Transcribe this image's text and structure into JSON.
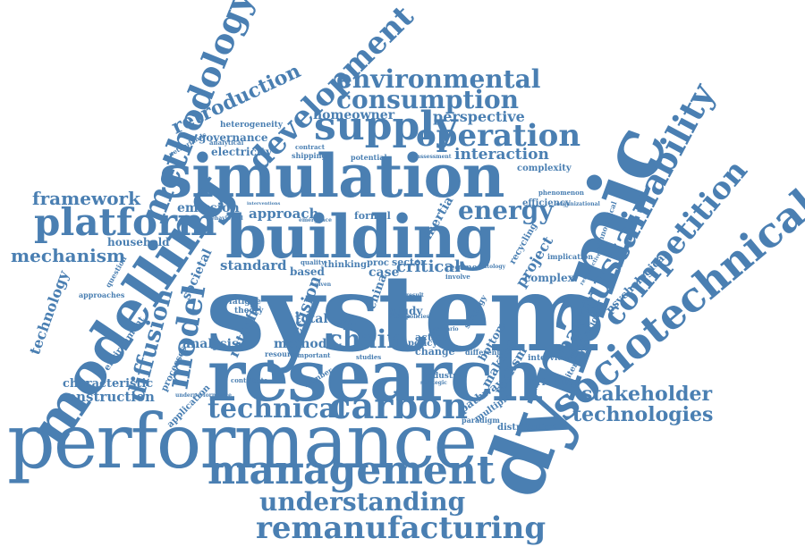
{
  "accent_color": "#4a7fb2",
  "background_color": "#ffffff",
  "words": [
    {
      "id": "system",
      "text": "system"
    },
    {
      "id": "simulation",
      "text": "simulation"
    },
    {
      "id": "performance",
      "text": "performance"
    },
    {
      "id": "research",
      "text": "research"
    },
    {
      "id": "building",
      "text": "building"
    },
    {
      "id": "dynamic",
      "text": "dynamic"
    },
    {
      "id": "modelling",
      "text": "modelling"
    },
    {
      "id": "management",
      "text": "management"
    },
    {
      "id": "sociotechnical",
      "text": "sociotechnical"
    },
    {
      "id": "sustainability",
      "text": "sustainability"
    },
    {
      "id": "methodology",
      "text": "methodology"
    },
    {
      "id": "remanufacturing",
      "text": "remanufacturing"
    },
    {
      "id": "understanding",
      "text": "understanding"
    },
    {
      "id": "technical",
      "text": "technical"
    },
    {
      "id": "carbon",
      "text": "carbon"
    },
    {
      "id": "platform",
      "text": "platform"
    },
    {
      "id": "environmental",
      "text": "environmental"
    },
    {
      "id": "consumption",
      "text": "consumption"
    },
    {
      "id": "supply",
      "text": "supply"
    },
    {
      "id": "operation",
      "text": "operation"
    },
    {
      "id": "competition",
      "text": "competition"
    },
    {
      "id": "development",
      "text": "development"
    },
    {
      "id": "retroduction",
      "text": "retroduction"
    },
    {
      "id": "chain",
      "text": "chain"
    },
    {
      "id": "model",
      "text": "model"
    },
    {
      "id": "energy",
      "text": "energy"
    },
    {
      "id": "stakeholder",
      "text": "stakeholder"
    },
    {
      "id": "technologies",
      "text": "technologies"
    },
    {
      "id": "framework",
      "text": "framework"
    },
    {
      "id": "mechanism",
      "text": "mechanism"
    },
    {
      "id": "diffusion",
      "text": "diffusion"
    },
    {
      "id": "technology",
      "text": "technology"
    },
    {
      "id": "construction",
      "text": "construction"
    },
    {
      "id": "characteristic",
      "text": "characteristic"
    },
    {
      "id": "interaction",
      "text": "interaction"
    },
    {
      "id": "perspective",
      "text": "perspective"
    },
    {
      "id": "homeowner",
      "text": "homeowner"
    },
    {
      "id": "paper",
      "text": "paper"
    },
    {
      "id": "critical",
      "text": "critical"
    },
    {
      "id": "approach",
      "text": "approach"
    },
    {
      "id": "standard",
      "text": "standard"
    },
    {
      "id": "emission",
      "text": "emission"
    },
    {
      "id": "household",
      "text": "household"
    },
    {
      "id": "governance",
      "text": "governance"
    },
    {
      "id": "electricity",
      "text": "electricity"
    },
    {
      "id": "heterogeneity",
      "text": "heterogeneity"
    },
    {
      "id": "project",
      "text": "project"
    },
    {
      "id": "retrofit",
      "text": "retrofit"
    },
    {
      "id": "analysis",
      "text": "analysis"
    },
    {
      "id": "method",
      "text": "method"
    },
    {
      "id": "total",
      "text": "total"
    },
    {
      "id": "decision",
      "text": "decision"
    },
    {
      "id": "complex",
      "text": "complex"
    },
    {
      "id": "psychological",
      "text": "psychological"
    },
    {
      "id": "innovation",
      "text": "innovation"
    },
    {
      "id": "societal",
      "text": "societal"
    },
    {
      "id": "environment",
      "text": "environment"
    },
    {
      "id": "approaches",
      "text": "approaches"
    },
    {
      "id": "processes",
      "text": "processes"
    },
    {
      "id": "application",
      "text": "application"
    },
    {
      "id": "pathway",
      "text": "pathway"
    },
    {
      "id": "multiple",
      "text": "multiple"
    },
    {
      "id": "distribution",
      "text": "distribution"
    },
    {
      "id": "bridging",
      "text": "bridging"
    },
    {
      "id": "making",
      "text": "making"
    },
    {
      "id": "realism",
      "text": "realism"
    },
    {
      "id": "bottom",
      "text": "bottom"
    },
    {
      "id": "interview",
      "text": "interview"
    },
    {
      "id": "literature",
      "text": "literature"
    },
    {
      "id": "efficiency",
      "text": "efficiency"
    },
    {
      "id": "complexity",
      "text": "complexity"
    },
    {
      "id": "phenomenon",
      "text": "phenomenon"
    },
    {
      "id": "technological",
      "text": "technological"
    },
    {
      "id": "implication",
      "text": "implication"
    },
    {
      "id": "recycling",
      "text": "recycling"
    },
    {
      "id": "inertia",
      "text": "inertia"
    },
    {
      "id": "formal",
      "text": "formal"
    },
    {
      "id": "case",
      "text": "case"
    },
    {
      "id": "based",
      "text": "based"
    },
    {
      "id": "sector",
      "text": "sector"
    },
    {
      "id": "regime",
      "text": "regime"
    },
    {
      "id": "china",
      "text": "china"
    },
    {
      "id": "study",
      "text": "study"
    },
    {
      "id": "action",
      "text": "action"
    },
    {
      "id": "change",
      "text": "change"
    },
    {
      "id": "policy",
      "text": "policy"
    },
    {
      "id": "industry",
      "text": "industry"
    },
    {
      "id": "different",
      "text": "different"
    },
    {
      "id": "proc",
      "text": "proc"
    },
    {
      "id": "thinking",
      "text": "thinking"
    },
    {
      "id": "level",
      "text": "level"
    },
    {
      "id": "theory",
      "text": "theory"
    },
    {
      "id": "fatigue",
      "text": "fatigue"
    },
    {
      "id": "potential",
      "text": "potential"
    },
    {
      "id": "shipping",
      "text": "shipping"
    },
    {
      "id": "contract",
      "text": "contract"
    },
    {
      "id": "assessment",
      "text": "assessment"
    },
    {
      "id": "question",
      "text": "question"
    },
    {
      "id": "netherlands",
      "text": "netherlands"
    },
    {
      "id": "analytical",
      "text": "analytical"
    },
    {
      "id": "strategy",
      "text": "strategy"
    },
    {
      "id": "strategic",
      "text": "strategic"
    },
    {
      "id": "paradigm",
      "text": "paradigm"
    },
    {
      "id": "contribute",
      "text": "contribute"
    },
    {
      "id": "number",
      "text": "number"
    },
    {
      "id": "resource",
      "text": "resource"
    },
    {
      "id": "important",
      "text": "important"
    },
    {
      "id": "underperformance",
      "text": "underperformance"
    },
    {
      "id": "quality",
      "text": "quality"
    },
    {
      "id": "studies",
      "text": "studies"
    },
    {
      "id": "organizational",
      "text": "organizational"
    },
    {
      "id": "behavioural",
      "text": "behavioural"
    },
    {
      "id": "involve",
      "text": "involve"
    },
    {
      "id": "ontology",
      "text": "ontology"
    },
    {
      "id": "scenario",
      "text": "scenario"
    },
    {
      "id": "reduce",
      "text": "reduce"
    },
    {
      "id": "policies",
      "text": "policies"
    },
    {
      "id": "retroductive",
      "text": "retroductive"
    },
    {
      "id": "result",
      "text": "result"
    },
    {
      "id": "interventions",
      "text": "interventions"
    },
    {
      "id": "emergence",
      "text": "emergence"
    },
    {
      "id": "given",
      "text": "given"
    }
  ]
}
